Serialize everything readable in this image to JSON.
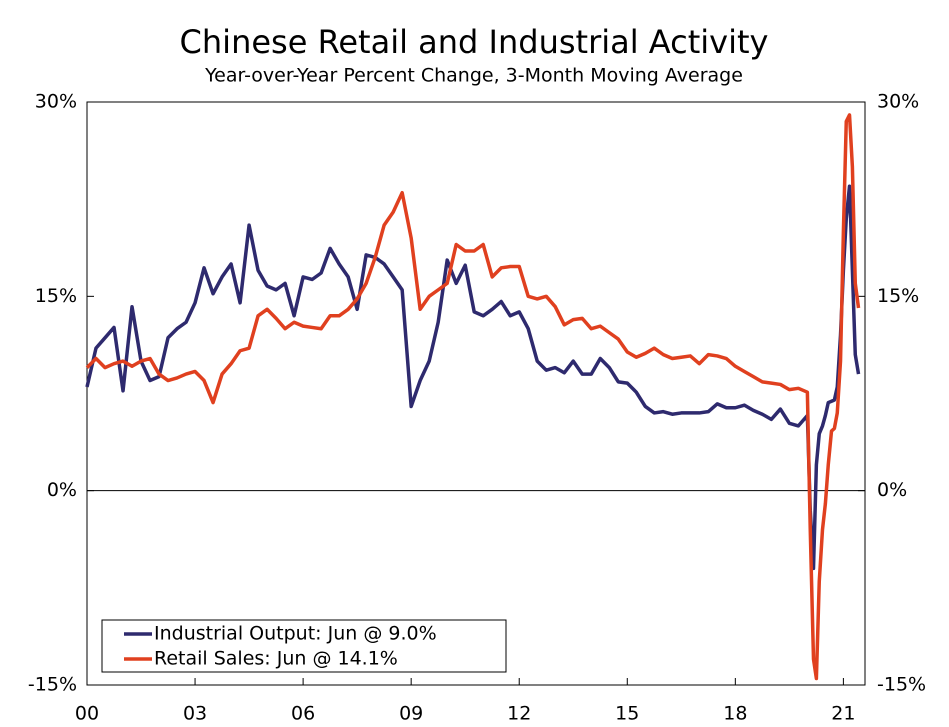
{
  "chart_data": {
    "type": "line",
    "title": "Chinese Retail and Industrial Activity",
    "subtitle": "Year-over-Year Percent Change, 3-Month Moving Average",
    "x": [
      2000,
      2000.25,
      2000.5,
      2000.75,
      2001,
      2001.25,
      2001.5,
      2001.75,
      2002,
      2002.25,
      2002.5,
      2002.75,
      2003,
      2003.25,
      2003.5,
      2003.75,
      2004,
      2004.25,
      2004.5,
      2004.75,
      2005,
      2005.25,
      2005.5,
      2005.75,
      2006,
      2006.25,
      2006.5,
      2006.75,
      2007,
      2007.25,
      2007.5,
      2007.75,
      2008,
      2008.25,
      2008.5,
      2008.75,
      2009,
      2009.25,
      2009.5,
      2009.75,
      2010,
      2010.25,
      2010.5,
      2010.75,
      2011,
      2011.25,
      2011.5,
      2011.75,
      2012,
      2012.25,
      2012.5,
      2012.75,
      2013,
      2013.25,
      2013.5,
      2013.75,
      2014,
      2014.25,
      2014.5,
      2014.75,
      2015,
      2015.25,
      2015.5,
      2015.75,
      2016,
      2016.25,
      2016.5,
      2016.75,
      2017,
      2017.25,
      2017.5,
      2017.75,
      2018,
      2018.25,
      2018.5,
      2018.75,
      2019,
      2019.25,
      2019.5,
      2019.75,
      2020,
      2020.08,
      2020.17,
      2020.25,
      2020.33,
      2020.42,
      2020.5,
      2020.58,
      2020.67,
      2020.75,
      2020.83,
      2020.92,
      2021,
      2021.08,
      2021.17,
      2021.25,
      2021.33,
      2021.42
    ],
    "series": [
      {
        "name": "Industrial Output: Jun @ 9.0%",
        "color": "#2e2a6e",
        "values": [
          8.0,
          11.0,
          11.8,
          12.6,
          7.7,
          14.2,
          10.0,
          8.5,
          8.8,
          11.8,
          12.5,
          13.0,
          14.5,
          17.2,
          15.2,
          16.5,
          17.5,
          14.5,
          20.5,
          17.0,
          15.8,
          15.5,
          16.0,
          13.5,
          16.5,
          16.3,
          16.8,
          18.7,
          17.5,
          16.5,
          14.0,
          18.2,
          18.0,
          17.5,
          16.5,
          15.5,
          6.5,
          8.5,
          10.0,
          13.0,
          17.8,
          16.0,
          17.4,
          13.8,
          13.5,
          14.0,
          14.6,
          13.5,
          13.8,
          12.5,
          10.0,
          9.3,
          9.5,
          9.1,
          10.0,
          9.0,
          9.0,
          10.2,
          9.5,
          8.4,
          8.3,
          7.6,
          6.5,
          6.0,
          6.1,
          5.9,
          6.0,
          6.0,
          6.0,
          6.1,
          6.7,
          6.4,
          6.4,
          6.6,
          6.2,
          5.9,
          5.5,
          6.3,
          5.2,
          5.0,
          5.8,
          -1.5,
          -6.0,
          2.0,
          4.4,
          5.0,
          5.8,
          6.8,
          6.9,
          7.0,
          8.0,
          12,
          17,
          21,
          23.5,
          17,
          10.5,
          9.0
        ]
      },
      {
        "name": "Retail Sales: Jun @ 14.1%",
        "color": "#e0401f",
        "values": [
          9.5,
          10.2,
          9.5,
          9.8,
          10.0,
          9.6,
          10.0,
          10.2,
          9.0,
          8.5,
          8.7,
          9.0,
          9.2,
          8.5,
          6.8,
          9.0,
          9.8,
          10.8,
          11.0,
          13.5,
          14.0,
          13.3,
          12.5,
          13.0,
          12.7,
          12.6,
          12.5,
          13.5,
          13.5,
          14.0,
          14.8,
          16.0,
          18.0,
          20.5,
          21.5,
          23.0,
          19.5,
          14.0,
          15.0,
          15.5,
          16.0,
          19.0,
          18.5,
          18.5,
          19.0,
          16.5,
          17.2,
          17.3,
          17.3,
          15.0,
          14.8,
          15.0,
          14.2,
          12.8,
          13.2,
          13.3,
          12.5,
          12.7,
          12.2,
          11.7,
          10.7,
          10.3,
          10.6,
          11.0,
          10.5,
          10.2,
          10.3,
          10.4,
          9.8,
          10.5,
          10.4,
          10.2,
          9.6,
          9.2,
          8.8,
          8.4,
          8.3,
          8.2,
          7.8,
          7.9,
          7.6,
          -3,
          -13,
          -14.5,
          -7,
          -3,
          -1,
          2,
          4.6,
          4.8,
          6.0,
          10,
          20,
          28.5,
          29.0,
          25,
          16,
          14.1
        ]
      }
    ],
    "xlim": [
      2000,
      2021.6
    ],
    "xticks": [
      {
        "value": 2000,
        "label": "00"
      },
      {
        "value": 2003,
        "label": "03"
      },
      {
        "value": 2006,
        "label": "06"
      },
      {
        "value": 2009,
        "label": "09"
      },
      {
        "value": 2012,
        "label": "12"
      },
      {
        "value": 2015,
        "label": "15"
      },
      {
        "value": 2018,
        "label": "18"
      },
      {
        "value": 2021,
        "label": "21"
      }
    ],
    "ylim": [
      -15,
      30
    ],
    "yticks": [
      {
        "value": -15,
        "label": "-15%"
      },
      {
        "value": 0,
        "label": "0%"
      },
      {
        "value": 15,
        "label": "15%"
      },
      {
        "value": 30,
        "label": "30%"
      }
    ],
    "y2lim": [
      -15,
      30
    ],
    "y2ticks": [
      {
        "value": -15,
        "label": "-15%"
      },
      {
        "value": 0,
        "label": "0%"
      },
      {
        "value": 15,
        "label": "15%"
      },
      {
        "value": 30,
        "label": "30%"
      }
    ],
    "zero_line": true,
    "legend": "lower left"
  }
}
